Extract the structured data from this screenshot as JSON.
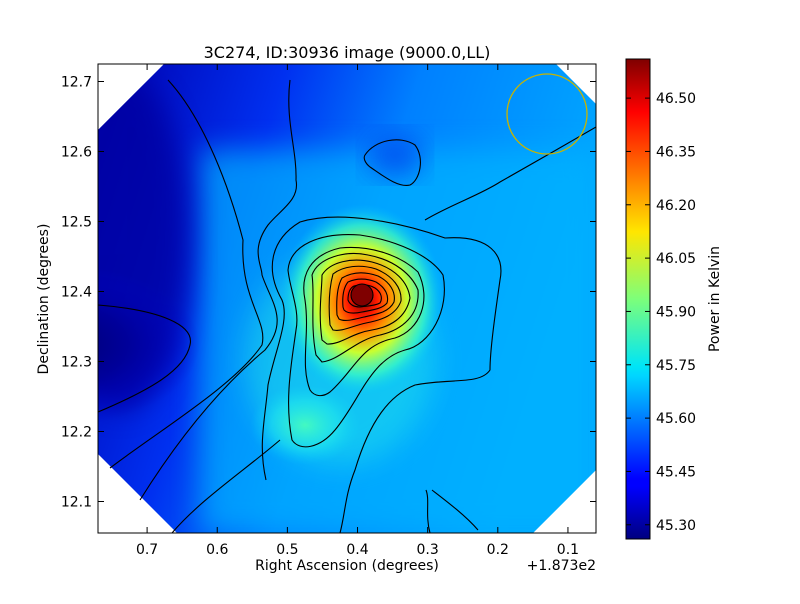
{
  "chart_data": {
    "type": "heatmap",
    "title": "3C274, ID:30936 image (9000.0,LL)",
    "xlabel": "Right Ascension (degrees)",
    "ylabel": "Declination (degrees)",
    "x_offset_label": "+1.873e2",
    "x_ticks": [
      "0.7",
      "0.6",
      "0.5",
      "0.4",
      "0.3",
      "0.2",
      "0.1"
    ],
    "y_ticks": [
      "12.1",
      "12.2",
      "12.3",
      "12.4",
      "12.5",
      "12.6",
      "12.7"
    ],
    "xlim": [
      0.77,
      0.06
    ],
    "ylim": [
      12.055,
      12.725
    ],
    "x_axis_inverted": true,
    "colormap": "jet",
    "colorbar": {
      "label": "Power in Kelvin",
      "ticks": [
        "45.30",
        "45.45",
        "45.60",
        "45.75",
        "45.90",
        "46.05",
        "46.20",
        "46.35",
        "46.50"
      ],
      "range": [
        45.26,
        46.61
      ]
    },
    "peak": {
      "ra": 0.4,
      "dec": 12.395,
      "value": 46.6
    },
    "beam": {
      "ra": 0.13,
      "dec": 12.65,
      "color": "#c8b400"
    },
    "contours": "black"
  }
}
